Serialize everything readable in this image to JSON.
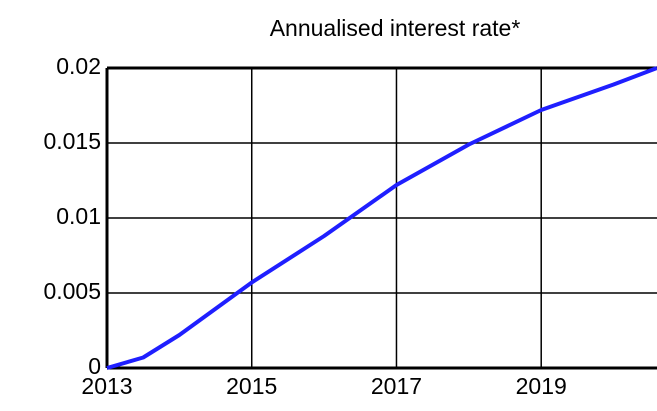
{
  "chart_data": {
    "type": "line",
    "title": "Annualised interest rate*",
    "x": [
      2013,
      2013.5,
      2014,
      2015,
      2016,
      2017,
      2018,
      2019,
      2020,
      2020.6
    ],
    "series": [
      {
        "name": "Annualised interest rate",
        "color": "#1f1fff",
        "values": [
          0,
          0.0007,
          0.0022,
          0.0057,
          0.0088,
          0.0122,
          0.0149,
          0.0172,
          0.0189,
          0.02
        ]
      }
    ],
    "xlim": [
      2013,
      2020.6
    ],
    "xticks": [
      2013,
      2015,
      2017,
      2019
    ],
    "ylim": [
      0,
      0.02
    ],
    "yticks": [
      0,
      0.005,
      0.01,
      0.015,
      0.02
    ],
    "grid": true
  }
}
